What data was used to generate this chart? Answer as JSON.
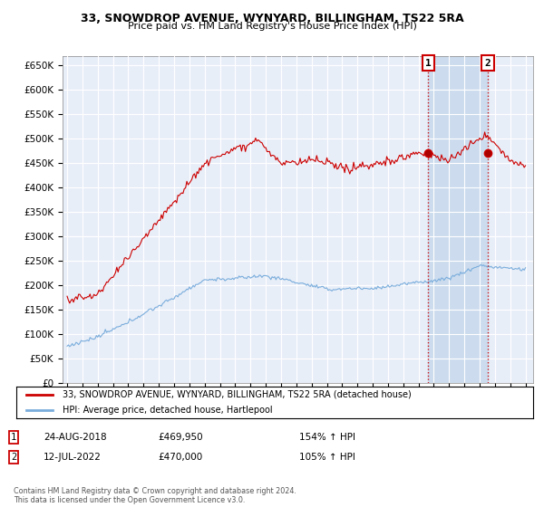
{
  "title": "33, SNOWDROP AVENUE, WYNYARD, BILLINGHAM, TS22 5RA",
  "subtitle": "Price paid vs. HM Land Registry's House Price Index (HPI)",
  "ylim": [
    0,
    670000
  ],
  "yticks": [
    0,
    50000,
    100000,
    150000,
    200000,
    250000,
    300000,
    350000,
    400000,
    450000,
    500000,
    550000,
    600000,
    650000
  ],
  "xlim_start": 1994.7,
  "xlim_end": 2025.5,
  "hpi_color": "#7aaddc",
  "price_color": "#cc0000",
  "background_color": "#e8eef8",
  "shade_color": "#ccdcee",
  "sale1_x": 2018.645,
  "sale1_y": 469950,
  "sale1_label": "1",
  "sale2_x": 2022.535,
  "sale2_y": 470000,
  "sale2_label": "2",
  "legend_line1": "33, SNOWDROP AVENUE, WYNYARD, BILLINGHAM, TS22 5RA (detached house)",
  "legend_line2": "HPI: Average price, detached house, Hartlepool",
  "table_row1": [
    "1",
    "24-AUG-2018",
    "£469,950",
    "154% ↑ HPI"
  ],
  "table_row2": [
    "2",
    "12-JUL-2022",
    "£470,000",
    "105% ↑ HPI"
  ],
  "footnote": "Contains HM Land Registry data © Crown copyright and database right 2024.\nThis data is licensed under the Open Government Licence v3.0."
}
